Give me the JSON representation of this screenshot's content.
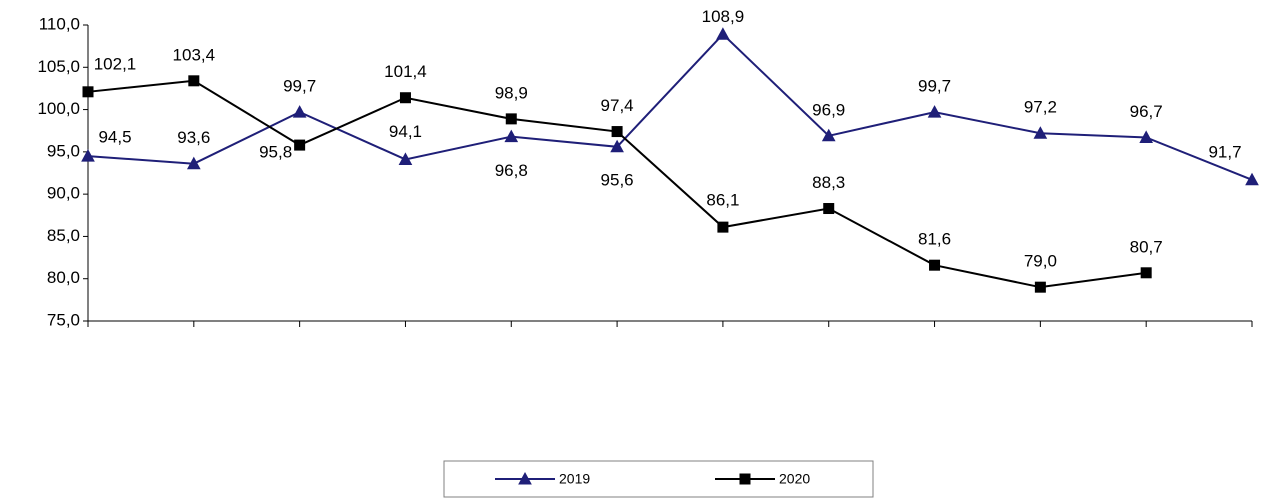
{
  "chart_data": {
    "type": "line",
    "categories": [
      null,
      null,
      null,
      null,
      null,
      null,
      null,
      null,
      null,
      null,
      null,
      null
    ],
    "series": [
      {
        "name": "2019",
        "color": "#1f1f78",
        "marker": "triangle",
        "values": [
          94.5,
          93.6,
          99.7,
          94.1,
          96.8,
          95.6,
          108.9,
          96.9,
          99.7,
          97.2,
          96.7,
          91.7
        ],
        "value_labels": [
          "94,5",
          "93,6",
          "99,7",
          "94,1",
          "96,8",
          "95,6",
          "108,9",
          "96,9",
          "99,7",
          "97,2",
          "96,7",
          "91,7"
        ]
      },
      {
        "name": "2020",
        "color": "#000000",
        "marker": "square",
        "values": [
          102.1,
          103.4,
          95.8,
          101.4,
          98.9,
          97.4,
          86.1,
          88.3,
          81.6,
          79.0,
          80.7,
          null
        ],
        "value_labels": [
          "102,1",
          "103,4",
          "95,8",
          "101,4",
          "98,9",
          "97,4",
          "86,1",
          "88,3",
          "81,6",
          "79,0",
          "80,7",
          null
        ]
      }
    ],
    "ylim": [
      75,
      110
    ],
    "yticks": [
      {
        "value": 75,
        "label": "75,0"
      },
      {
        "value": 80,
        "label": "80,0"
      },
      {
        "value": 85,
        "label": "85,0"
      },
      {
        "value": 90,
        "label": "90,0"
      },
      {
        "value": 95,
        "label": "95,0"
      },
      {
        "value": 100,
        "label": "100,0"
      },
      {
        "value": 105,
        "label": "105,0"
      },
      {
        "value": 110,
        "label": "110,0"
      }
    ],
    "grid": false,
    "legend": "bottom"
  }
}
